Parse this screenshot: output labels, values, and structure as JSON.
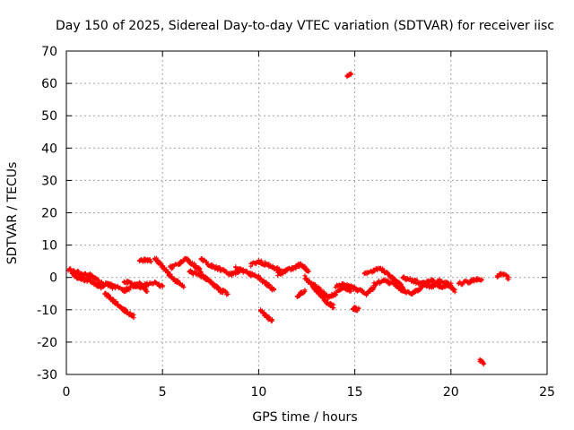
{
  "chart_data": {
    "type": "scatter",
    "title": "Day 150 of 2025, Sidereal Day-to-day VTEC variation (SDTVAR) for receiver iisc",
    "xlabel": "GPS time / hours",
    "ylabel": "SDTVAR / TECUs",
    "xlim": [
      0,
      25
    ],
    "ylim": [
      -30,
      70
    ],
    "xticks": [
      "0",
      "5",
      "10",
      "15",
      "20",
      "25"
    ],
    "yticks": [
      "-30",
      "-20",
      "-10",
      "0",
      "10",
      "20",
      "30",
      "40",
      "50",
      "60",
      "70"
    ],
    "grid": true,
    "marker": "plus",
    "series_color": "#ff0000",
    "traces": [
      {
        "name": "track-1",
        "x": [
          0.1,
          0.4,
          0.7,
          1.0,
          1.3,
          1.6,
          1.9
        ],
        "y": [
          2.5,
          2.0,
          1.5,
          1.0,
          0.5,
          -1.0,
          -2.0
        ]
      },
      {
        "name": "track-2",
        "x": [
          0.3,
          0.6,
          0.9,
          1.2,
          1.5,
          1.8,
          2.1,
          2.4
        ],
        "y": [
          1.0,
          0.0,
          -0.5,
          -1.0,
          -2.0,
          -3.0,
          -2.0,
          -3.0
        ]
      },
      {
        "name": "track-3",
        "x": [
          2.0,
          2.3,
          2.6,
          2.9,
          3.2,
          3.5
        ],
        "y": [
          -5.0,
          -6.5,
          -8.0,
          -9.5,
          -11.0,
          -12.0
        ]
      },
      {
        "name": "track-4",
        "x": [
          2.2,
          2.6,
          3.0,
          3.4,
          3.8,
          4.2
        ],
        "y": [
          -2.0,
          -3.0,
          -4.0,
          -3.0,
          -2.0,
          -4.0
        ]
      },
      {
        "name": "track-5",
        "x": [
          3.0,
          3.4,
          3.8,
          4.2,
          4.6,
          5.0
        ],
        "y": [
          -1.0,
          -2.0,
          -3.0,
          -2.0,
          -1.5,
          -3.0
        ]
      },
      {
        "name": "track-6",
        "x": [
          3.8,
          4.1,
          4.4
        ],
        "y": [
          5.0,
          5.5,
          5.0
        ]
      },
      {
        "name": "track-7",
        "x": [
          4.6,
          4.9,
          5.2,
          5.5,
          5.8,
          6.1
        ],
        "y": [
          6.0,
          4.0,
          2.0,
          0.0,
          -1.5,
          -2.5
        ]
      },
      {
        "name": "track-8",
        "x": [
          5.4,
          5.8,
          6.2,
          6.6,
          7.0
        ],
        "y": [
          3.0,
          4.0,
          6.0,
          4.0,
          2.0
        ]
      },
      {
        "name": "track-9",
        "x": [
          6.4,
          6.8,
          7.2,
          7.6,
          8.0,
          8.4
        ],
        "y": [
          2.0,
          1.0,
          0.0,
          -2.0,
          -4.0,
          -5.0
        ]
      },
      {
        "name": "track-10",
        "x": [
          7.0,
          7.4,
          7.8,
          8.2,
          8.6,
          9.0
        ],
        "y": [
          6.0,
          4.0,
          3.0,
          2.0,
          1.0,
          2.0
        ]
      },
      {
        "name": "track-11",
        "x": [
          8.8,
          9.2,
          9.6,
          10.0,
          10.4,
          10.8
        ],
        "y": [
          3.0,
          2.0,
          1.0,
          0.0,
          -2.0,
          -4.0
        ]
      },
      {
        "name": "track-12",
        "x": [
          9.6,
          10.0,
          10.4,
          10.8,
          11.2
        ],
        "y": [
          4.0,
          5.0,
          4.0,
          3.0,
          2.0
        ]
      },
      {
        "name": "track-13",
        "x": [
          10.1,
          10.3,
          10.5,
          10.7
        ],
        "y": [
          -10.0,
          -11.5,
          -12.5,
          -13.5
        ]
      },
      {
        "name": "track-14",
        "x": [
          11.0,
          11.4,
          11.8,
          12.2,
          12.6
        ],
        "y": [
          1.0,
          2.0,
          3.0,
          4.0,
          2.0
        ]
      },
      {
        "name": "track-15",
        "x": [
          12.0,
          12.2,
          12.4
        ],
        "y": [
          -6.0,
          -5.0,
          -4.0
        ]
      },
      {
        "name": "track-16",
        "x": [
          12.4,
          12.7,
          13.0,
          13.3,
          13.6,
          13.9
        ],
        "y": [
          0.0,
          -2.0,
          -4.0,
          -6.0,
          -8.0,
          -9.0
        ]
      },
      {
        "name": "track-17",
        "x": [
          12.8,
          13.2,
          13.6,
          14.0,
          14.4,
          14.8
        ],
        "y": [
          -2.0,
          -4.0,
          -6.0,
          -5.0,
          -3.0,
          -4.0
        ]
      },
      {
        "name": "track-18",
        "x": [
          14.6,
          14.8
        ],
        "y": [
          62.0,
          63.0
        ]
      },
      {
        "name": "track-19",
        "x": [
          14.0,
          14.4,
          14.8,
          15.2,
          15.6,
          16.0
        ],
        "y": [
          -3.0,
          -2.0,
          -3.0,
          -4.0,
          -5.0,
          -3.0
        ]
      },
      {
        "name": "track-20",
        "x": [
          14.9,
          15.2
        ],
        "y": [
          -9.5,
          -10.0
        ]
      },
      {
        "name": "track-21",
        "x": [
          15.5,
          15.9,
          16.3,
          16.7,
          17.1,
          17.5
        ],
        "y": [
          1.0,
          2.0,
          3.0,
          1.0,
          -1.0,
          -3.0
        ]
      },
      {
        "name": "track-22",
        "x": [
          16.0,
          16.5,
          17.0,
          17.5,
          18.0,
          18.5
        ],
        "y": [
          -2.0,
          -1.0,
          -2.0,
          -4.0,
          -5.0,
          -3.0
        ]
      },
      {
        "name": "track-23",
        "x": [
          17.5,
          18.0,
          18.5,
          19.0,
          19.5,
          20.0
        ],
        "y": [
          0.0,
          -1.0,
          -2.0,
          -1.0,
          -3.0,
          -2.0
        ]
      },
      {
        "name": "track-24",
        "x": [
          18.6,
          19.0,
          19.4,
          19.8,
          20.2
        ],
        "y": [
          -2.0,
          -3.0,
          -1.0,
          -2.0,
          -4.0
        ]
      },
      {
        "name": "track-25",
        "x": [
          20.4,
          20.8,
          21.2,
          21.6
        ],
        "y": [
          -2.0,
          -1.5,
          -1.0,
          -0.5
        ]
      },
      {
        "name": "track-26",
        "x": [
          21.5,
          21.7
        ],
        "y": [
          -25.5,
          -26.5
        ]
      },
      {
        "name": "track-27",
        "x": [
          22.4,
          22.6,
          22.8,
          23.0
        ],
        "y": [
          0.5,
          1.0,
          0.5,
          0.0
        ]
      }
    ]
  }
}
